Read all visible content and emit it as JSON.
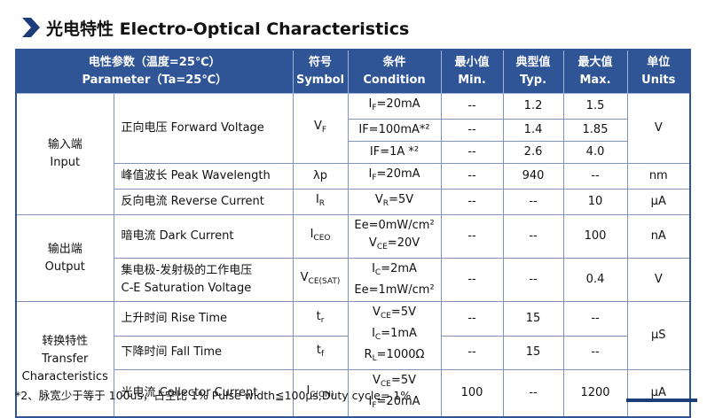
{
  "header": {
    "title": "光电特性 Electro-Optical Characteristics"
  },
  "table": {
    "columns": [
      [
        "电性参数（温度=25℃）",
        "Parameter（Ta=25℃）"
      ],
      [
        "符号",
        "Symbol"
      ],
      [
        "条件",
        "Condition"
      ],
      [
        "最小值",
        "Min."
      ],
      [
        "典型值",
        "Typ."
      ],
      [
        "最大值",
        "Max."
      ],
      [
        "单位",
        "Units"
      ]
    ],
    "groups": [
      {
        "label": [
          "输入端",
          "Input"
        ],
        "rows": [
          {
            "param": [
              "正向电压 Forward Voltage"
            ],
            "symbol": [
              "V",
              "F"
            ],
            "condition": [
              [
                "I",
                "F",
                "=20mA"
              ]
            ],
            "min": "--",
            "typ": "1.2",
            "max": "1.5",
            "unit": "V"
          },
          {
            "condition": [
              [
                "IF=100mA*²"
              ]
            ],
            "min": "--",
            "typ": "1.4",
            "max": "1.85"
          },
          {
            "condition": [
              [
                "IF=1A *²"
              ]
            ],
            "min": "--",
            "typ": "2.6",
            "max": "4.0"
          },
          {
            "param": [
              "峰值波长 Peak Wavelength"
            ],
            "symbol": [
              "λp"
            ],
            "condition": [
              [
                "I",
                "F",
                "=20mA"
              ]
            ],
            "min": "--",
            "typ": "940",
            "max": "--",
            "unit": "nm"
          },
          {
            "param": [
              "反向电流 Reverse Current"
            ],
            "symbol": [
              "I",
              "R"
            ],
            "condition": [
              [
                "V",
                "R",
                "=5V"
              ]
            ],
            "min": "--",
            "typ": "--",
            "max": "10",
            "unit": "μA"
          }
        ]
      },
      {
        "label": [
          "输出端",
          "Output"
        ],
        "rows": [
          {
            "param": [
              "暗电流 Dark Current"
            ],
            "symbol": [
              "I",
              "CEO"
            ],
            "condition": [
              [
                "Ee=0mW/cm²"
              ],
              [
                "V",
                "CE",
                "=20V"
              ]
            ],
            "min": "--",
            "typ": "--",
            "max": "100",
            "unit": "nA"
          },
          {
            "param": [
              "集电极-发射极的工作电压",
              "C-E Saturation Voltage"
            ],
            "symbol": [
              "V",
              "CE(SAT)"
            ],
            "condition": [
              [
                "I",
                "C",
                "=2mA"
              ],
              [
                "Ee=1mW/cm²"
              ]
            ],
            "min": "--",
            "typ": "--",
            "max": "0.4",
            "unit": "V"
          }
        ]
      },
      {
        "label": [
          "转换特性",
          "Transfer",
          "Characteristics"
        ],
        "rows": [
          {
            "param": [
              "上升时间 Rise Time"
            ],
            "symbol": [
              "t",
              "r"
            ],
            "condition": [
              [
                "V",
                "CE",
                "=5V"
              ],
              [
                "I",
                "C",
                "=1mA"
              ],
              [
                "R",
                "L",
                "=1000Ω"
              ]
            ],
            "min": "--",
            "typ": "15",
            "max": "--",
            "unit": "μS"
          },
          {
            "param": [
              "下降时间 Fall Time"
            ],
            "symbol": [
              "t",
              "f"
            ],
            "min": "--",
            "typ": "15",
            "max": "--"
          },
          {
            "param": [
              "光电流 Collector Current"
            ],
            "symbol": [
              "I",
              "C(ON)"
            ],
            "condition": [
              [
                "V",
                "CE",
                "=5V"
              ],
              [
                "I",
                "F",
                "=20mA"
              ]
            ],
            "min": "100",
            "typ": "--",
            "max": "1200",
            "unit": "μA"
          }
        ]
      }
    ]
  },
  "footnote": "*2、脉宽少于等于 100us，占空比 1% Pulse width≦100μs,Duty cycle= 1%"
}
